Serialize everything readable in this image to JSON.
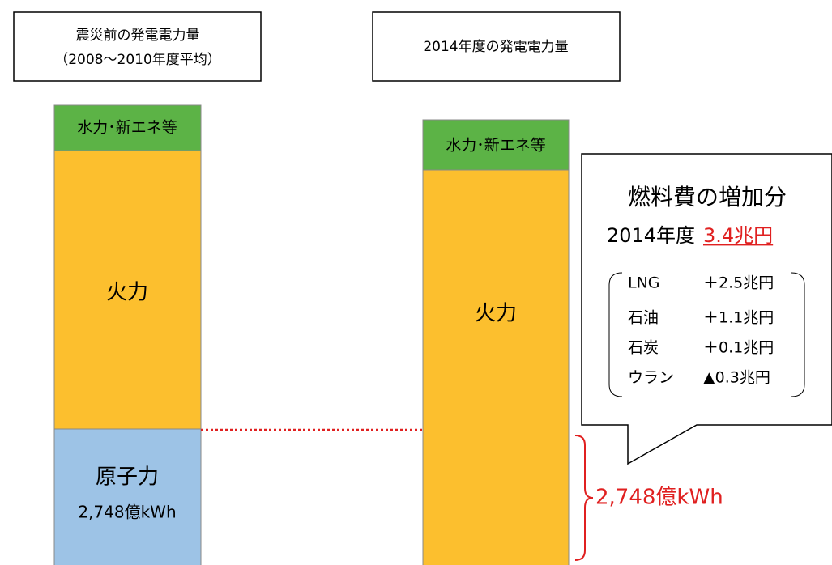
{
  "left": {
    "header": [
      "震災前の発電電力量",
      "（2008～2010年度平均）"
    ],
    "segments": {
      "renewables": "水力･新エネ等",
      "thermal": "火力",
      "nuclear": "原子力",
      "nuclear_amount": "2,748億kWh"
    }
  },
  "right": {
    "header": "2014年度の発電電力量",
    "segments": {
      "renewables": "水力･新エネ等",
      "thermal": "火力"
    },
    "difference": "2,748億kWh"
  },
  "callout": {
    "title": "燃料費の増加分",
    "year": "2014年度",
    "total": "3.4兆円",
    "items": [
      [
        "LNG",
        "＋2.5兆円"
      ],
      [
        "石油",
        "＋1.1兆円"
      ],
      [
        "石炭",
        "＋0.1兆円"
      ],
      [
        "ウラン",
        "▲0.3兆円"
      ]
    ]
  }
}
